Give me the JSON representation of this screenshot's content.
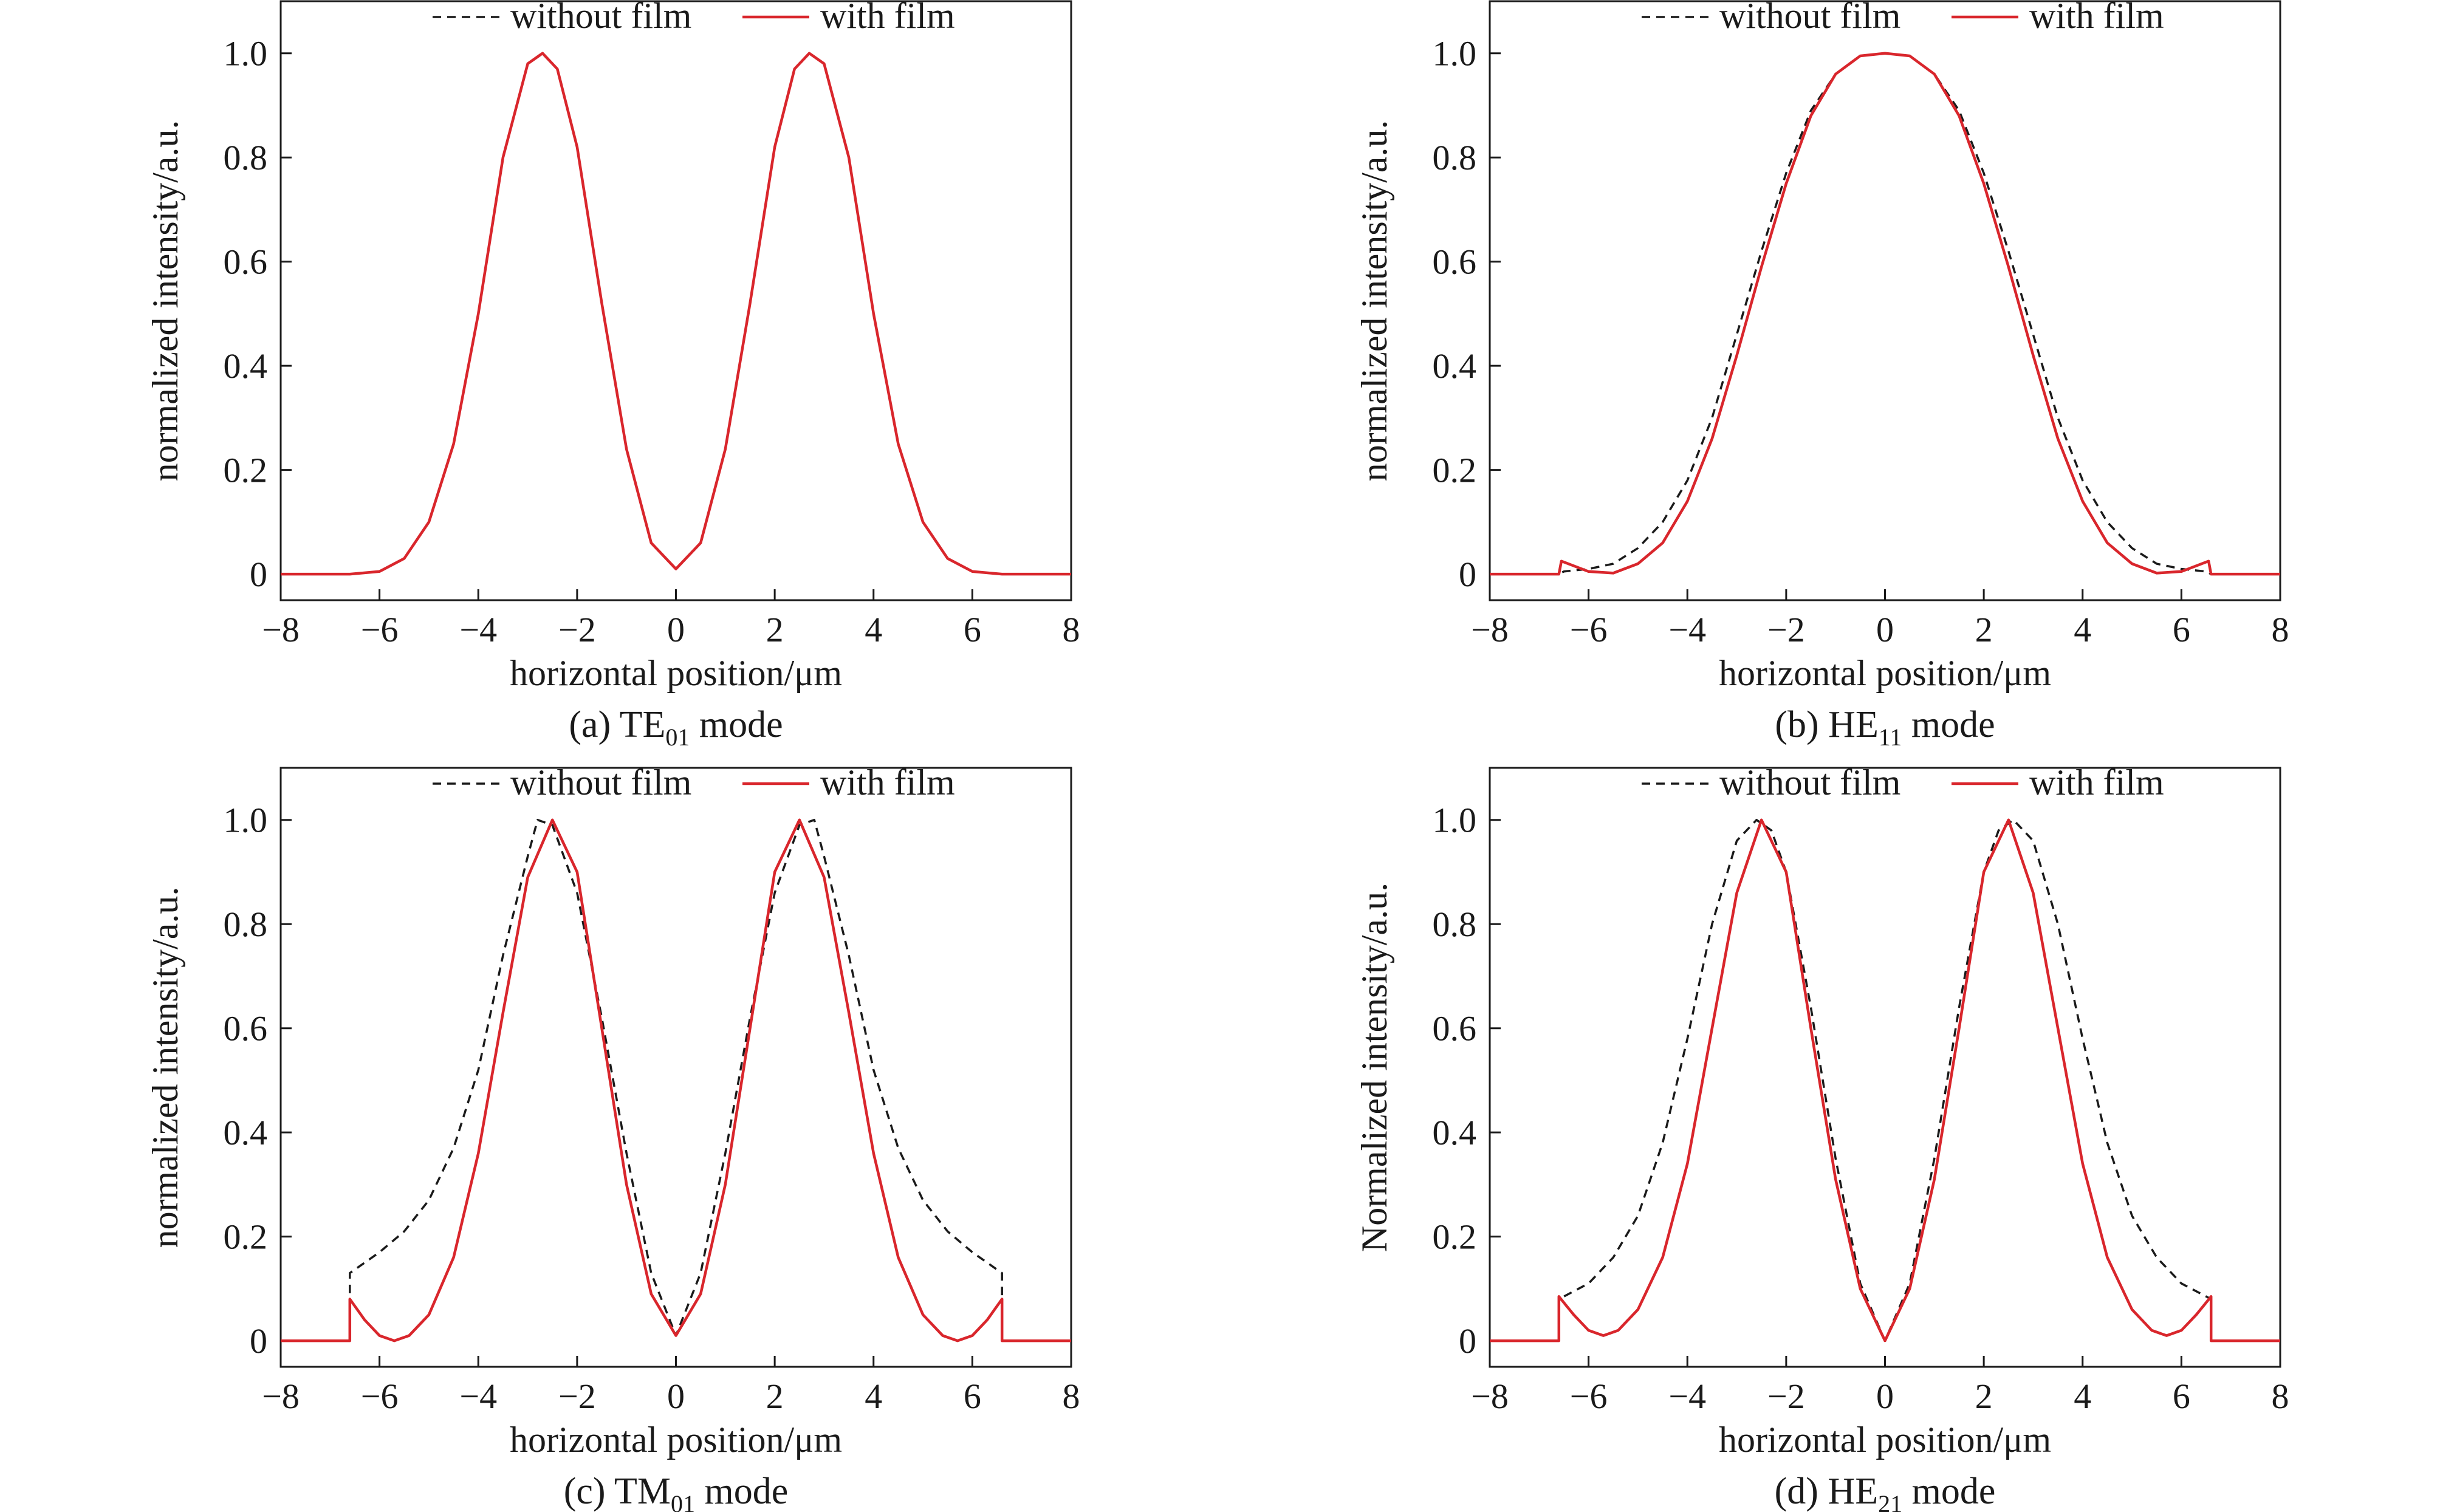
{
  "chart_data": [
    {
      "type": "line",
      "caption": {
        "prefix": "(a) TE",
        "sub": "01",
        "suffix": " mode"
      },
      "xlabel": "horizontal position/μm",
      "ylabel": "normalized intensity/a.u.",
      "xlim": [
        -8,
        8
      ],
      "ylim": [
        -0.05,
        1.1
      ],
      "xticks": [
        "−8",
        "−6",
        "−4",
        "−2",
        "0",
        "2",
        "4",
        "6",
        "8"
      ],
      "yticks": [
        "0",
        "0.2",
        "0.4",
        "0.6",
        "0.8",
        "1.0"
      ],
      "legend": {
        "position": "top-center",
        "entries": [
          "without film",
          "with film"
        ]
      },
      "series": [
        {
          "name": "without film",
          "color": "#1a1a1a",
          "dash": true,
          "x": [
            -8,
            -6.6,
            -6,
            -5.5,
            -5,
            -4.5,
            -4,
            -3.5,
            -3,
            -2.7,
            -2.4,
            -2,
            -1.5,
            -1,
            -0.5,
            0,
            0.5,
            1,
            1.5,
            2,
            2.4,
            2.7,
            3,
            3.5,
            4,
            4.5,
            5,
            5.5,
            6,
            6.6,
            8
          ],
          "y": [
            0,
            0,
            0.005,
            0.03,
            0.1,
            0.25,
            0.5,
            0.8,
            0.98,
            1.0,
            0.97,
            0.82,
            0.52,
            0.24,
            0.06,
            0.01,
            0.06,
            0.24,
            0.52,
            0.82,
            0.97,
            1.0,
            0.98,
            0.8,
            0.5,
            0.25,
            0.1,
            0.03,
            0.005,
            0,
            0
          ]
        },
        {
          "name": "with film",
          "color": "#d9262c",
          "dash": false,
          "x": [
            -8,
            -6.6,
            -6,
            -5.5,
            -5,
            -4.5,
            -4,
            -3.5,
            -3,
            -2.7,
            -2.4,
            -2,
            -1.5,
            -1,
            -0.5,
            0,
            0.5,
            1,
            1.5,
            2,
            2.4,
            2.7,
            3,
            3.5,
            4,
            4.5,
            5,
            5.5,
            6,
            6.6,
            8
          ],
          "y": [
            0,
            0,
            0.005,
            0.03,
            0.1,
            0.25,
            0.5,
            0.8,
            0.98,
            1.0,
            0.97,
            0.82,
            0.52,
            0.24,
            0.06,
            0.01,
            0.06,
            0.24,
            0.52,
            0.82,
            0.97,
            1.0,
            0.98,
            0.8,
            0.5,
            0.25,
            0.1,
            0.03,
            0.005,
            0,
            0
          ]
        }
      ]
    },
    {
      "type": "line",
      "caption": {
        "prefix": "(b) HE",
        "sub": "11",
        "suffix": " mode"
      },
      "xlabel": "horizontal position/μm",
      "ylabel": "normalized intensity/a.u.",
      "xlim": [
        -8,
        8
      ],
      "ylim": [
        -0.05,
        1.1
      ],
      "xticks": [
        "−8",
        "−6",
        "−4",
        "−2",
        "0",
        "2",
        "4",
        "6",
        "8"
      ],
      "yticks": [
        "0",
        "0.2",
        "0.4",
        "0.6",
        "0.8",
        "1.0"
      ],
      "legend": {
        "position": "top-center",
        "entries": [
          "without film",
          "with film"
        ]
      },
      "series": [
        {
          "name": "without film",
          "color": "#1a1a1a",
          "dash": true,
          "x": [
            -8,
            -6.6,
            -6.5,
            -6,
            -5.5,
            -5,
            -4.5,
            -4,
            -3.5,
            -3,
            -2.5,
            -2,
            -1.5,
            -1,
            -0.5,
            0,
            0.5,
            1,
            1.5,
            2,
            2.5,
            3,
            3.5,
            4,
            4.5,
            5,
            5.5,
            6,
            6.5,
            6.6,
            8
          ],
          "y": [
            0,
            0,
            0.005,
            0.01,
            0.02,
            0.05,
            0.1,
            0.18,
            0.3,
            0.46,
            0.62,
            0.77,
            0.89,
            0.96,
            0.995,
            1.0,
            0.995,
            0.96,
            0.89,
            0.77,
            0.62,
            0.46,
            0.3,
            0.18,
            0.1,
            0.05,
            0.02,
            0.01,
            0.005,
            0,
            0
          ]
        },
        {
          "name": "with film",
          "color": "#d9262c",
          "dash": false,
          "x": [
            -8,
            -6.6,
            -6.55,
            -6,
            -5.5,
            -5,
            -4.5,
            -4,
            -3.5,
            -3,
            -2.5,
            -2,
            -1.5,
            -1,
            -0.5,
            0,
            0.5,
            1,
            1.5,
            2,
            2.5,
            3,
            3.5,
            4,
            4.5,
            5,
            5.5,
            6,
            6.55,
            6.6,
            8
          ],
          "y": [
            0,
            0,
            0.025,
            0.005,
            0.002,
            0.02,
            0.06,
            0.14,
            0.26,
            0.42,
            0.59,
            0.75,
            0.88,
            0.96,
            0.995,
            1.0,
            0.995,
            0.96,
            0.88,
            0.75,
            0.59,
            0.42,
            0.26,
            0.14,
            0.06,
            0.02,
            0.002,
            0.005,
            0.025,
            0,
            0
          ]
        }
      ]
    },
    {
      "type": "line",
      "caption": {
        "prefix": "(c) TM",
        "sub": "01",
        "suffix": " mode"
      },
      "xlabel": "horizontal position/μm",
      "ylabel": "normalized intensity/a.u.",
      "xlim": [
        -8,
        8
      ],
      "ylim": [
        -0.05,
        1.1
      ],
      "xticks": [
        "−8",
        "−6",
        "−4",
        "−2",
        "0",
        "2",
        "4",
        "6",
        "8"
      ],
      "yticks": [
        "0",
        "0.2",
        "0.4",
        "0.6",
        "0.8",
        "1.0"
      ],
      "legend": {
        "position": "top-center",
        "entries": [
          "without film",
          "with film"
        ]
      },
      "series": [
        {
          "name": "without film",
          "color": "#1a1a1a",
          "dash": true,
          "x": [
            -8,
            -6.6,
            -6.6,
            -6,
            -5.5,
            -5,
            -4.5,
            -4,
            -3.5,
            -3,
            -2.8,
            -2.5,
            -2,
            -1.5,
            -1,
            -0.5,
            0,
            0.5,
            1,
            1.5,
            2,
            2.5,
            2.8,
            3,
            3.5,
            4,
            4.5,
            5,
            5.5,
            6,
            6.6,
            6.6,
            8
          ],
          "y": [
            0,
            0,
            0.13,
            0.17,
            0.21,
            0.27,
            0.37,
            0.52,
            0.74,
            0.93,
            1.0,
            0.99,
            0.86,
            0.62,
            0.36,
            0.13,
            0.01,
            0.13,
            0.36,
            0.62,
            0.86,
            0.99,
            1.0,
            0.93,
            0.74,
            0.52,
            0.37,
            0.27,
            0.21,
            0.17,
            0.13,
            0,
            0
          ]
        },
        {
          "name": "with film",
          "color": "#d9262c",
          "dash": false,
          "x": [
            -8,
            -6.6,
            -6.6,
            -6.3,
            -6,
            -5.7,
            -5.4,
            -5,
            -4.5,
            -4,
            -3.5,
            -3,
            -2.5,
            -2,
            -1.5,
            -1,
            -0.5,
            0,
            0.5,
            1,
            1.5,
            2,
            2.5,
            3,
            3.5,
            4,
            4.5,
            5,
            5.4,
            5.7,
            6,
            6.3,
            6.6,
            6.6,
            8
          ],
          "y": [
            0,
            0,
            0.08,
            0.04,
            0.01,
            0.0,
            0.01,
            0.05,
            0.16,
            0.36,
            0.63,
            0.89,
            1.0,
            0.9,
            0.6,
            0.3,
            0.09,
            0.01,
            0.09,
            0.3,
            0.6,
            0.9,
            1.0,
            0.89,
            0.63,
            0.36,
            0.16,
            0.05,
            0.01,
            0.0,
            0.01,
            0.04,
            0.08,
            0,
            0
          ]
        }
      ]
    },
    {
      "type": "line",
      "caption": {
        "prefix": "(d) HE",
        "sub": "21",
        "suffix": " mode"
      },
      "xlabel": "horizontal position/μm",
      "ylabel": "Normalized intensity/a.u.",
      "xlim": [
        -8,
        8
      ],
      "ylim": [
        -0.05,
        1.1
      ],
      "xticks": [
        "−8",
        "−6",
        "−4",
        "−2",
        "0",
        "2",
        "4",
        "6",
        "8"
      ],
      "yticks": [
        "0",
        "0.2",
        "0.4",
        "0.6",
        "0.8",
        "1.0"
      ],
      "legend": {
        "position": "top-center",
        "entries": [
          "without film",
          "with film"
        ]
      },
      "series": [
        {
          "name": "without film",
          "color": "#1a1a1a",
          "dash": true,
          "x": [
            -8,
            -6.6,
            -6.6,
            -6,
            -5.5,
            -5,
            -4.5,
            -4,
            -3.5,
            -3,
            -2.6,
            -2.3,
            -2,
            -1.5,
            -1,
            -0.5,
            0,
            0.5,
            1,
            1.5,
            2,
            2.3,
            2.6,
            3,
            3.5,
            4,
            4.5,
            5,
            5.5,
            6,
            6.6,
            6.6,
            8
          ],
          "y": [
            0,
            0,
            0.08,
            0.11,
            0.16,
            0.24,
            0.38,
            0.58,
            0.8,
            0.96,
            1.0,
            0.98,
            0.9,
            0.64,
            0.35,
            0.11,
            0.0,
            0.11,
            0.35,
            0.64,
            0.9,
            0.98,
            1.0,
            0.96,
            0.8,
            0.58,
            0.38,
            0.24,
            0.16,
            0.11,
            0.08,
            0,
            0
          ]
        },
        {
          "name": "with film",
          "color": "#d9262c",
          "dash": false,
          "x": [
            -8,
            -6.6,
            -6.6,
            -6.3,
            -6,
            -5.7,
            -5.4,
            -5,
            -4.5,
            -4,
            -3.5,
            -3,
            -2.5,
            -2,
            -1.5,
            -1,
            -0.5,
            0,
            0.5,
            1,
            1.5,
            2,
            2.5,
            3,
            3.5,
            4,
            4.5,
            5,
            5.4,
            5.7,
            6,
            6.3,
            6.6,
            6.6,
            8
          ],
          "y": [
            0,
            0,
            0.085,
            0.05,
            0.02,
            0.01,
            0.02,
            0.06,
            0.16,
            0.34,
            0.6,
            0.86,
            1.0,
            0.9,
            0.6,
            0.31,
            0.1,
            0.0,
            0.1,
            0.31,
            0.6,
            0.9,
            1.0,
            0.86,
            0.6,
            0.34,
            0.16,
            0.06,
            0.02,
            0.01,
            0.02,
            0.05,
            0.085,
            0,
            0
          ]
        }
      ]
    }
  ]
}
